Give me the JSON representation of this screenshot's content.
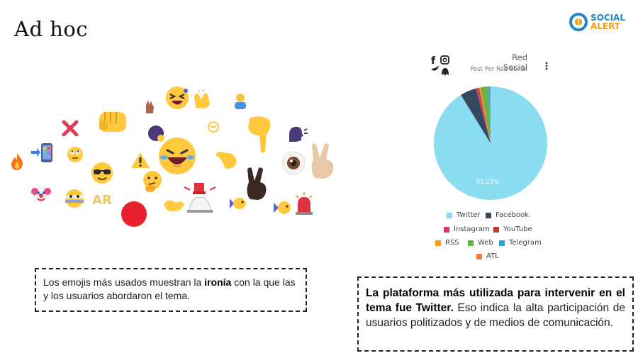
{
  "header": {
    "title": "Ad hoc"
  },
  "logo": {
    "line1": "SOCIAL",
    "line2": "ALERT",
    "color1": "#1f88c7",
    "color2": "#f39c12"
  },
  "emoji_labels": {
    "ar": "AR"
  },
  "notes": {
    "emoji_note_prefix": "Los emojis más usados muestran la ",
    "emoji_note_bold": "ironía",
    "emoji_note_suffix": " con la que las y los usuarios abordaron el tema.",
    "platform_note_bold": "La plataforma más utilizada para intervenir en el tema fue Twitter.",
    "platform_note_rest": " Eso indica la alta participación de usuarios politizados y de medios de comunicación."
  },
  "chart_data": {
    "type": "pie",
    "title": "Red Social",
    "subtitle": "Post Por Red Social",
    "slices": [
      {
        "name": "Twitter",
        "value": 91.22,
        "color": "#8adcf0",
        "label": "91.22%"
      },
      {
        "name": "Facebook",
        "value": 4.6,
        "color": "#34495e"
      },
      {
        "name": "Instagram",
        "value": 0.5,
        "color": "#d63a6b"
      },
      {
        "name": "YouTube",
        "value": 0.4,
        "color": "#c0392b"
      },
      {
        "name": "RSS",
        "value": 0.5,
        "color": "#f39c12"
      },
      {
        "name": "Web",
        "value": 2.3,
        "color": "#6ab04c"
      },
      {
        "name": "Telegram",
        "value": 0.3,
        "color": "#29a8e0"
      },
      {
        "name": "ATL",
        "value": 0.18,
        "color": "#f08030"
      }
    ],
    "legend_position": "bottom"
  }
}
